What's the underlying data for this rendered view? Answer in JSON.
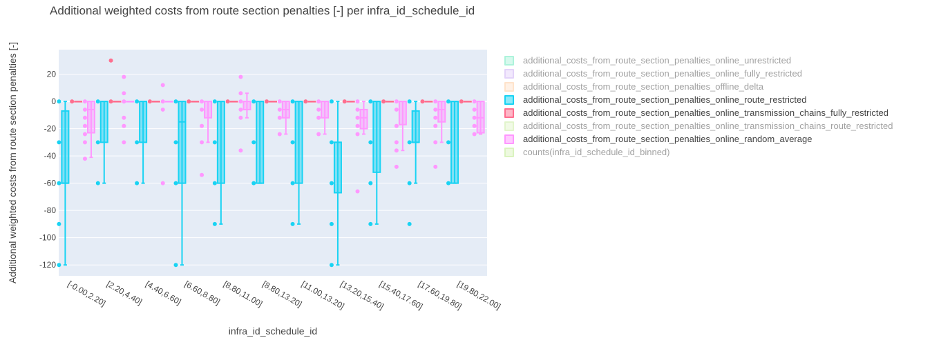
{
  "chart_data": {
    "type": "box",
    "title": "Additional weighted costs from route section penalties [-] per infra_id_schedule_id",
    "xlabel": "infra_id_schedule_id",
    "ylabel": "Additional weighted costs from route section penalties [-]",
    "ylim": [
      -128,
      38
    ],
    "yticks": [
      20,
      0,
      -20,
      -40,
      -60,
      -80,
      -100,
      -120
    ],
    "categories": [
      "[-0.00,2.20]",
      "[2.20,4.40]",
      "[4.40,6.60]",
      "[6.60,8.80]",
      "[8.80,11.00]",
      "[8.80,13.20]",
      "[11.00,13.20]",
      "[13.20,15.40]",
      "[15.40,17.60]",
      "[17.60,19.80]",
      "[19.80,22.00]"
    ],
    "grid": true,
    "legend_placement": "right",
    "series": [
      {
        "name": "additional_costs_from_route_section_penalties_online_unrestricted",
        "color": "#5ee8b8",
        "visible": false
      },
      {
        "name": "additional_costs_from_route_section_penalties_online_fully_restricted",
        "color": "#c9a8f5",
        "visible": false
      },
      {
        "name": "additional_costs_from_route_section_penalties_offline_delta",
        "color": "#ffc899",
        "visible": false
      },
      {
        "name": "additional_costs_from_route_section_penalties_online_route_restricted",
        "color": "#19d3f3",
        "visible": true,
        "boxes": [
          {
            "q1": -60,
            "median": -60,
            "q3": -7,
            "lower": -120,
            "upper": 0,
            "points": [
              0,
              -30,
              -60,
              -90,
              -120
            ]
          },
          {
            "q1": -30,
            "median": 0,
            "q3": 0,
            "lower": -60,
            "upper": 0,
            "points": [
              0,
              -30,
              -60
            ]
          },
          {
            "q1": -30,
            "median": 0,
            "q3": 0,
            "lower": -60,
            "upper": 0,
            "points": [
              0,
              -30,
              -60
            ]
          },
          {
            "q1": -60,
            "median": -15,
            "q3": 0,
            "lower": -120,
            "upper": 0,
            "points": [
              0,
              -30,
              -60,
              -120
            ]
          },
          {
            "q1": -60,
            "median": 0,
            "q3": 0,
            "lower": -90,
            "upper": 0,
            "points": [
              0,
              -30,
              -60,
              -90
            ]
          },
          {
            "q1": -60,
            "median": 0,
            "q3": 0,
            "lower": -60,
            "upper": 0,
            "points": [
              0,
              -30,
              -60
            ]
          },
          {
            "q1": -60,
            "median": 0,
            "q3": 0,
            "lower": -90,
            "upper": 0,
            "points": [
              0,
              -30,
              -60,
              -90
            ]
          },
          {
            "q1": -67,
            "median": -30,
            "q3": -30,
            "lower": -120,
            "upper": 0,
            "points": [
              0,
              -30,
              -60,
              -90,
              -120
            ]
          },
          {
            "q1": -52,
            "median": 0,
            "q3": 0,
            "lower": -90,
            "upper": 0,
            "points": [
              0,
              -30,
              -60,
              -90
            ]
          },
          {
            "q1": -30,
            "median": -30,
            "q3": -7,
            "lower": -60,
            "upper": 0,
            "points": [
              0,
              -30,
              -60,
              -90
            ]
          },
          {
            "q1": -60,
            "median": 0,
            "q3": 0,
            "lower": -60,
            "upper": 0,
            "points": [
              0,
              -30,
              -60
            ]
          }
        ]
      },
      {
        "name": "additional_costs_from_route_section_penalties_online_transmission_chains_fully_restricted",
        "color": "#fe6f8f",
        "visible": true,
        "boxes": [
          {
            "q1": 0,
            "median": 0,
            "q3": 0,
            "lower": 0,
            "upper": 0,
            "points": [
              0
            ]
          },
          {
            "q1": 0,
            "median": 0,
            "q3": 0,
            "lower": 0,
            "upper": 0,
            "points": [
              0,
              30
            ]
          },
          {
            "q1": 0,
            "median": 0,
            "q3": 0,
            "lower": 0,
            "upper": 0,
            "points": [
              0
            ]
          },
          {
            "q1": 0,
            "median": 0,
            "q3": 0,
            "lower": 0,
            "upper": 0,
            "points": [
              0
            ]
          },
          {
            "q1": 0,
            "median": 0,
            "q3": 0,
            "lower": 0,
            "upper": 0,
            "points": [
              0
            ]
          },
          {
            "q1": 0,
            "median": 0,
            "q3": 0,
            "lower": 0,
            "upper": 0,
            "points": [
              0
            ]
          },
          {
            "q1": 0,
            "median": 0,
            "q3": 0,
            "lower": 0,
            "upper": 0,
            "points": [
              0
            ]
          },
          {
            "q1": 0,
            "median": 0,
            "q3": 0,
            "lower": 0,
            "upper": 0,
            "points": [
              0
            ]
          },
          {
            "q1": 0,
            "median": 0,
            "q3": 0,
            "lower": 0,
            "upper": 0,
            "points": [
              0
            ]
          },
          {
            "q1": 0,
            "median": 0,
            "q3": 0,
            "lower": 0,
            "upper": 0,
            "points": [
              0
            ]
          },
          {
            "q1": 0,
            "median": 0,
            "q3": 0,
            "lower": 0,
            "upper": 0,
            "points": [
              0
            ]
          }
        ]
      },
      {
        "name": "additional_costs_from_route_section_penalties_online_transmission_chains_route_restricted",
        "color": "#c6ec9b",
        "visible": false
      },
      {
        "name": "additional_costs_from_route_section_penalties_online_random_average",
        "color": "#ff97ff",
        "visible": true,
        "boxes": [
          {
            "q1": -23,
            "median": -6,
            "q3": 0,
            "lower": -41,
            "upper": 0,
            "points": [
              0,
              -6,
              -12,
              -18,
              -24,
              -30,
              -42
            ]
          },
          {
            "q1": 0,
            "median": 0,
            "q3": 0,
            "lower": 0,
            "upper": 0,
            "points": [
              18,
              6,
              0,
              -12,
              -18,
              -30
            ]
          },
          {
            "q1": 0,
            "median": 0,
            "q3": 0,
            "lower": 0,
            "upper": 0,
            "points": [
              12,
              0,
              -6,
              -60
            ]
          },
          {
            "q1": -12,
            "median": 0,
            "q3": 0,
            "lower": -30,
            "upper": 0,
            "points": [
              0,
              -6,
              -18,
              -30,
              -54
            ]
          },
          {
            "q1": -6,
            "median": 0,
            "q3": 0,
            "lower": -12,
            "upper": 6,
            "points": [
              18,
              6,
              0,
              -6,
              -12,
              -36
            ]
          },
          {
            "q1": -12,
            "median": -6,
            "q3": 0,
            "lower": -24,
            "upper": 0,
            "points": [
              0,
              -6,
              -12,
              -24
            ]
          },
          {
            "q1": -12,
            "median": 0,
            "q3": 0,
            "lower": -24,
            "upper": 0,
            "points": [
              0,
              -6,
              -12,
              -24
            ]
          },
          {
            "q1": -20,
            "median": -12,
            "q3": -6,
            "lower": -24,
            "upper": 0,
            "points": [
              0,
              -6,
              -12,
              -18,
              -24,
              -66
            ]
          },
          {
            "q1": -17,
            "median": 0,
            "q3": 0,
            "lower": -36,
            "upper": 0,
            "points": [
              0,
              -6,
              -18,
              -30,
              -36,
              -48
            ]
          },
          {
            "q1": -15,
            "median": -6,
            "q3": 0,
            "lower": -30,
            "upper": 0,
            "points": [
              0,
              -6,
              -12,
              -18,
              -30,
              -48
            ]
          },
          {
            "q1": -23,
            "median": -12,
            "q3": 0,
            "lower": -24,
            "upper": 0,
            "points": [
              0,
              -6,
              -12,
              -18,
              -24
            ]
          }
        ]
      },
      {
        "name": "counts(infra_id_schedule_id_binned)",
        "color": "#b6e880",
        "visible": false
      }
    ]
  }
}
